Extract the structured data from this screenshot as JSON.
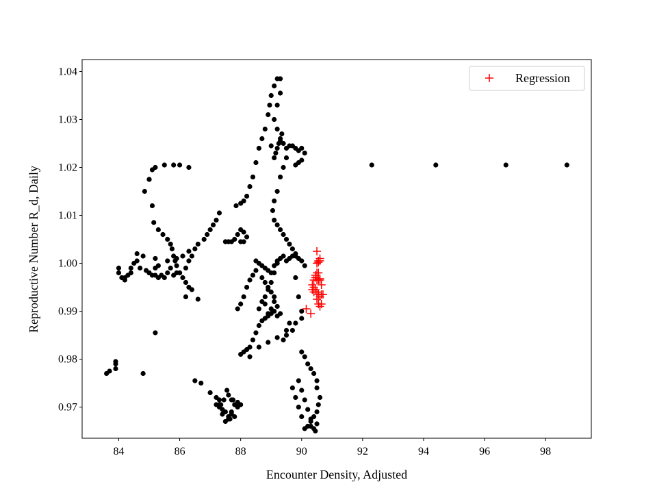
{
  "chart_data": {
    "type": "scatter",
    "title": "",
    "xlabel": "Encounter Density, Adjusted",
    "ylabel": "Reproductive Number R_d, Daily",
    "xlim": [
      82.8,
      99.5
    ],
    "ylim": [
      0.9635,
      1.0425
    ],
    "xticks": [
      84,
      86,
      88,
      90,
      92,
      94,
      96,
      98
    ],
    "yticks": [
      0.97,
      0.98,
      0.99,
      1.0,
      1.01,
      1.02,
      1.03,
      1.04
    ],
    "ytick_labels": [
      "0.97",
      "0.98",
      "0.99",
      "1.00",
      "1.01",
      "1.02",
      "1.03",
      "1.04"
    ],
    "grid": false,
    "legend": {
      "position": "top-right",
      "entries": [
        "Regression"
      ]
    },
    "colors": {
      "observed": "#000000",
      "regression": "#ff0000"
    },
    "series": [
      {
        "marker": "dot",
        "color": "#000000",
        "x": [
          83.6,
          83.7,
          83.9,
          83.9,
          83.9,
          84.0,
          84.1,
          84.2,
          84.3,
          84.4,
          84.5,
          84.6,
          84.7,
          84.9,
          85.0,
          85.1,
          85.2,
          85.3,
          85.4,
          85.5,
          85.6,
          85.7,
          85.8,
          85.9,
          86.0,
          86.2,
          86.3,
          86.4,
          86.5,
          86.6,
          86.8,
          86.9,
          87.0,
          87.1,
          87.2,
          87.3,
          84.0,
          84.2,
          84.4,
          84.6,
          84.8,
          85.0,
          85.2,
          85.2,
          85.3,
          85.6,
          85.9,
          86.1,
          86.3,
          85.0,
          85.1,
          85.2,
          85.5,
          85.8,
          86.0,
          86.3,
          84.85,
          85.0,
          85.1,
          85.15,
          85.3,
          85.45,
          85.6,
          85.7,
          85.75,
          85.8,
          85.85,
          85.9,
          86.0,
          86.1,
          86.2,
          86.3,
          86.4,
          86.2,
          86.6,
          85.2,
          84.8,
          87.0,
          87.2,
          87.3,
          87.3,
          87.4,
          87.5,
          87.6,
          87.7,
          87.8,
          87.9,
          87.3,
          87.4,
          87.5,
          87.6,
          87.2,
          87.7,
          87.5,
          87.6,
          87.7,
          87.8,
          87.9,
          88.0,
          88.1,
          88.2,
          88.0,
          88.1,
          87.85,
          88.0,
          88.1,
          88.2,
          88.3,
          88.4,
          88.5,
          88.6,
          88.7,
          88.8,
          88.9,
          88.95,
          89.0,
          89.1,
          89.2,
          89.3,
          89.3,
          89.2,
          89.1,
          89.2,
          89.3,
          89.0,
          89.1,
          89.15,
          89.2,
          89.25,
          89.3,
          89.35,
          89.4,
          89.5,
          89.6,
          89.7,
          89.8,
          89.9,
          90.0,
          90.1,
          89.8,
          89.9,
          90.0,
          89.5,
          89.4,
          89.3,
          89.2,
          89.1,
          89.05,
          89.1,
          89.2,
          89.3,
          89.4,
          89.5,
          89.6,
          89.7,
          89.8,
          88.5,
          88.6,
          88.7,
          88.8,
          88.9,
          89.0,
          89.1,
          89.2,
          88.7,
          88.8,
          88.9,
          89.0,
          89.1,
          88.5,
          88.4,
          88.3,
          88.2,
          88.1,
          88.0,
          87.9,
          88.6,
          88.7,
          88.8,
          88.9,
          89.0,
          89.1,
          89.2,
          89.3,
          89.4,
          89.5,
          89.6,
          89.7,
          89.8,
          89.9,
          90.0,
          90.1,
          89.8,
          89.9,
          90.0,
          89.6,
          89.7,
          89.5,
          89.4,
          88.8,
          88.9,
          89.0,
          89.1,
          89.2,
          89.3,
          90.0,
          90.1,
          90.2,
          90.3,
          90.4,
          90.5,
          90.5,
          90.6,
          90.55,
          90.5,
          90.4,
          90.3,
          90.2,
          90.1,
          90.0,
          89.9,
          89.8,
          89.7,
          90.3,
          90.4,
          90.45,
          90.5,
          90.3,
          90.2,
          90.1,
          90.0,
          89.9,
          88.0,
          88.1,
          88.2,
          88.3,
          88.4,
          88.5,
          88.6,
          88.7,
          88.8,
          88.9,
          89.0,
          89.1,
          89.2,
          88.3,
          88.6,
          88.9,
          89.2,
          89.5,
          89.8,
          90.0,
          92.3,
          94.4,
          96.7,
          98.7,
          87.55,
          87.7,
          87.8,
          87.65,
          87.9,
          88.0,
          87.75,
          87.6,
          87.45,
          87.35,
          86.7,
          86.5
        ],
        "y": [
          0.977,
          0.9775,
          0.9795,
          0.979,
          0.978,
          0.999,
          0.997,
          0.9965,
          0.9975,
          0.999,
          1.0,
          1.002,
          0.999,
          0.9985,
          0.998,
          0.9975,
          0.9975,
          0.997,
          0.9975,
          0.997,
          0.998,
          0.999,
          0.9975,
          0.998,
          0.998,
          0.999,
          1.0005,
          1.0015,
          1.003,
          1.004,
          1.005,
          1.006,
          1.007,
          1.008,
          1.009,
          1.0105,
          0.998,
          0.997,
          0.998,
          1.0005,
          1.0015,
          0.998,
          0.999,
          1.001,
          0.9995,
          1.0005,
          1.001,
          1.0015,
          1.0025,
          1.0175,
          1.0195,
          1.02,
          1.0205,
          1.0205,
          1.0205,
          1.02,
          1.015,
          1.0175,
          1.012,
          1.0085,
          1.007,
          1.006,
          1.005,
          1.004,
          1.003,
          1.0015,
          1.0005,
          0.9995,
          0.998,
          0.997,
          0.996,
          0.995,
          0.9945,
          0.993,
          0.9925,
          0.9855,
          0.977,
          0.973,
          0.972,
          0.9715,
          0.9705,
          0.9695,
          0.969,
          0.968,
          0.9685,
          0.9705,
          0.971,
          0.97,
          0.9685,
          0.967,
          0.9675,
          0.9705,
          0.9715,
          1.0045,
          1.0045,
          1.0045,
          1.005,
          1.006,
          1.007,
          1.0065,
          1.0055,
          1.0045,
          1.0045,
          1.012,
          1.0125,
          1.013,
          1.014,
          1.016,
          1.018,
          1.021,
          1.024,
          1.026,
          1.028,
          1.031,
          1.033,
          1.035,
          1.037,
          1.0385,
          1.0385,
          1.0355,
          1.033,
          1.03,
          1.028,
          1.026,
          1.0245,
          1.022,
          1.023,
          1.024,
          1.025,
          1.0255,
          1.027,
          1.025,
          1.024,
          1.0245,
          1.0245,
          1.024,
          1.0235,
          1.024,
          1.023,
          1.0205,
          1.021,
          1.0215,
          1.022,
          1.02,
          1.018,
          1.015,
          1.013,
          1.011,
          1.009,
          1.008,
          1.007,
          1.006,
          1.005,
          1.004,
          1.003,
          1.002,
          1.0005,
          1.0,
          0.9995,
          0.999,
          0.9985,
          0.998,
          0.9995,
          1.0,
          0.997,
          0.996,
          0.995,
          0.994,
          0.993,
          0.9985,
          0.9975,
          0.9965,
          0.995,
          0.993,
          0.9915,
          0.9905,
          0.9905,
          0.992,
          0.993,
          0.9945,
          0.996,
          0.998,
          1.0005,
          1.001,
          1.0015,
          1.0005,
          1.001,
          1.0015,
          1.0015,
          1.001,
          1.0005,
          0.9995,
          0.997,
          0.993,
          0.99,
          0.9875,
          0.986,
          0.985,
          0.984,
          0.9915,
          0.9895,
          0.9905,
          0.992,
          0.991,
          0.9895,
          0.9815,
          0.9805,
          0.979,
          0.978,
          0.977,
          0.9755,
          0.974,
          0.972,
          0.9705,
          0.969,
          0.968,
          0.967,
          0.966,
          0.9655,
          0.968,
          0.97,
          0.972,
          0.974,
          0.966,
          0.9655,
          0.965,
          0.9665,
          0.9675,
          0.9695,
          0.9715,
          0.9735,
          0.9755,
          0.981,
          0.9815,
          0.982,
          0.9825,
          0.984,
          0.9855,
          0.987,
          0.988,
          0.9885,
          0.989,
          0.9895,
          0.99,
          0.989,
          0.9805,
          0.9825,
          0.9835,
          0.9845,
          0.986,
          0.9875,
          0.9885,
          1.0205,
          1.0205,
          1.0205,
          1.0205,
          0.9735,
          0.969,
          0.968,
          0.9675,
          0.97,
          0.9705,
          0.9715,
          0.9725,
          0.9715,
          0.9705,
          0.975,
          0.9755
        ]
      },
      {
        "name": "Regression",
        "marker": "plus",
        "color": "#ff0000",
        "x": [
          90.15,
          90.3,
          90.35,
          90.4,
          90.45,
          90.5,
          90.55,
          90.6,
          90.65,
          90.4,
          90.45,
          90.5,
          90.55,
          90.6,
          90.5,
          90.55,
          90.6,
          90.65,
          90.5,
          90.55,
          90.6,
          90.45,
          90.5,
          90.55,
          90.5,
          90.6,
          90.55,
          90.65,
          90.7,
          90.4,
          90.35,
          90.55,
          90.6
        ],
        "y": [
          0.9905,
          0.9895,
          0.9955,
          0.9965,
          0.997,
          0.9965,
          0.9965,
          0.9965,
          0.9955,
          0.995,
          0.9945,
          0.994,
          0.9935,
          0.993,
          0.9925,
          0.9915,
          0.991,
          0.9915,
          1.0,
          1.0005,
          1.001,
          0.9975,
          0.998,
          0.998,
          1.0025,
          1.0005,
          1.0002,
          0.9935,
          0.9935,
          0.994,
          0.9945,
          0.9965,
          0.9968
        ]
      }
    ]
  }
}
